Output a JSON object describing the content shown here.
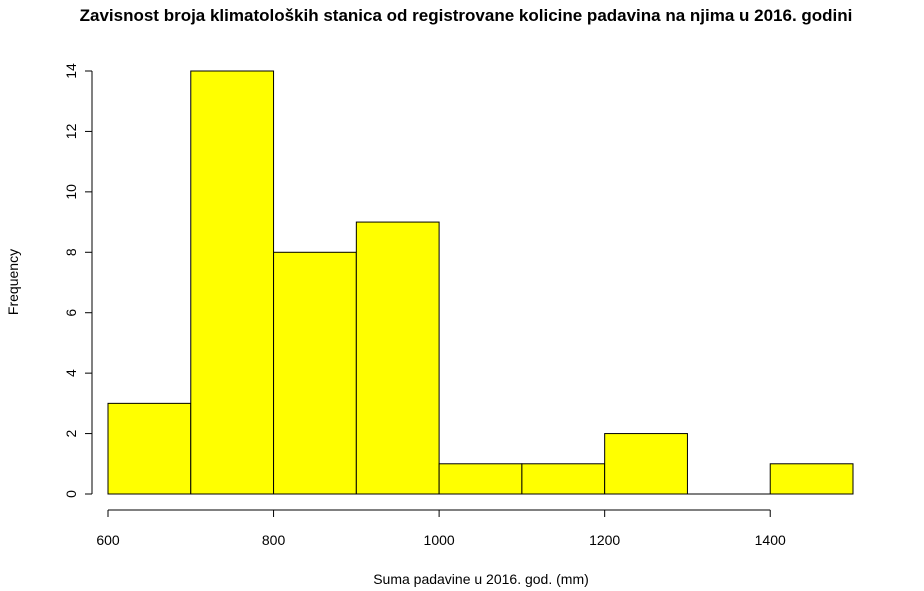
{
  "chart_data": {
    "type": "bar",
    "title": "Zavisnost broja klimatoloških stanica od registrovane kolicine padavina na njima u 2016. godini",
    "xlabel": "Suma padavine u 2016. god. (mm)",
    "ylabel": "Frequency",
    "bins": [
      {
        "from": 600,
        "to": 700,
        "count": 3
      },
      {
        "from": 700,
        "to": 800,
        "count": 14
      },
      {
        "from": 800,
        "to": 900,
        "count": 8
      },
      {
        "from": 900,
        "to": 1000,
        "count": 9
      },
      {
        "from": 1000,
        "to": 1100,
        "count": 1
      },
      {
        "from": 1100,
        "to": 1200,
        "count": 1
      },
      {
        "from": 1200,
        "to": 1300,
        "count": 2
      },
      {
        "from": 1300,
        "to": 1400,
        "count": 0
      },
      {
        "from": 1400,
        "to": 1500,
        "count": 1
      }
    ],
    "xticks": [
      "600",
      "800",
      "1000",
      "1200",
      "1400"
    ],
    "yticks": [
      "0",
      "2",
      "4",
      "6",
      "8",
      "10",
      "12",
      "14"
    ],
    "xlim": [
      600,
      1500
    ],
    "ylim": [
      0,
      14
    ],
    "bar_color": "#ffff00",
    "grid": false
  }
}
